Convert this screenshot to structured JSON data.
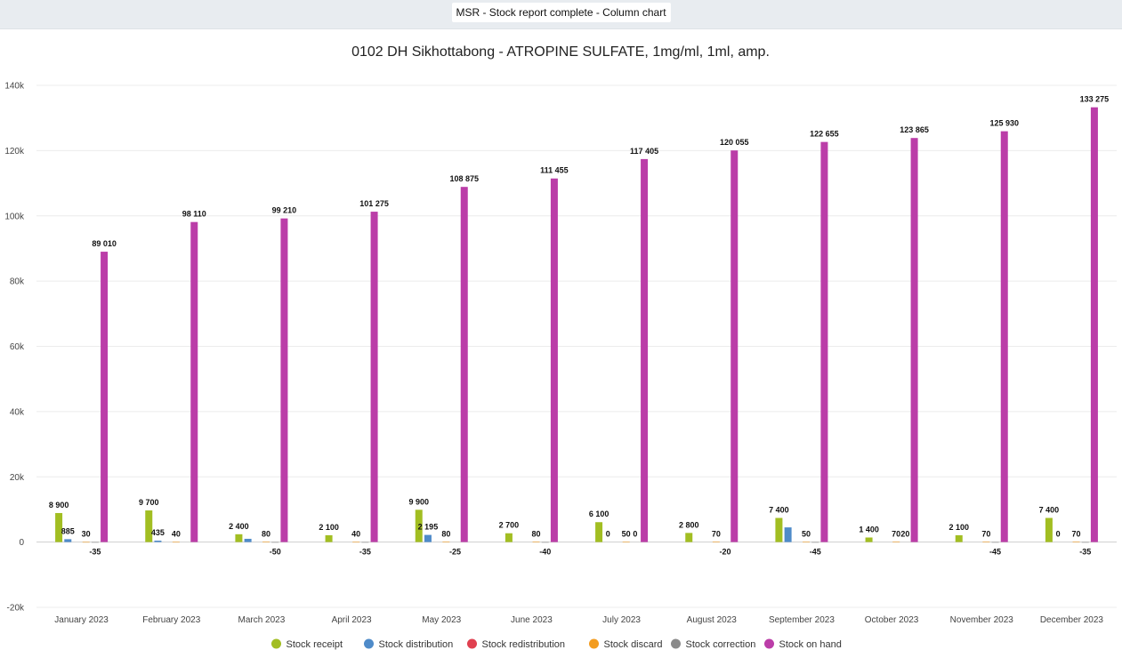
{
  "window": {
    "title": "MSR - Stock report complete - Column chart"
  },
  "chart_data": {
    "type": "bar",
    "title": "0102 DH Sikhottabong - ATROPINE SULFATE, 1mg/ml, 1ml, amp.",
    "categories": [
      "January 2023",
      "February 2023",
      "March 2023",
      "April 2023",
      "May 2023",
      "June 2023",
      "July 2023",
      "August 2023",
      "September 2023",
      "October 2023",
      "November 2023",
      "December 2023"
    ],
    "ylim": [
      -20000,
      140000
    ],
    "yticks": [
      -20000,
      0,
      20000,
      40000,
      60000,
      80000,
      100000,
      120000,
      140000
    ],
    "ytick_labels": [
      "-20k",
      "0",
      "20k",
      "40k",
      "60k",
      "80k",
      "100k",
      "120k",
      "140k"
    ],
    "grid": true,
    "legend_position": "bottom",
    "series": [
      {
        "name": "Stock receipt",
        "color": "#a2be22",
        "values": [
          8900,
          9700,
          2400,
          2100,
          9900,
          2700,
          6100,
          2800,
          7400,
          1400,
          2100,
          7400
        ],
        "labels": [
          "8 900",
          "9 700",
          "2 400",
          "2 100",
          "9 900",
          "2 700",
          "6 100",
          "2 800",
          "7 400",
          "1 400",
          "2 100",
          "7 400"
        ]
      },
      {
        "name": "Stock distribution",
        "color": "#4f8bc9",
        "values": [
          885,
          435,
          1000,
          0,
          2195,
          0,
          0,
          0,
          4500,
          0,
          0,
          0
        ],
        "labels": [
          "885",
          "435",
          "",
          "",
          "2 195",
          "",
          "0",
          "",
          "",
          "",
          "",
          "0"
        ]
      },
      {
        "name": "Stock redistribution",
        "color": "#e04050",
        "values": [
          0,
          0,
          0,
          0,
          0,
          0,
          0,
          0,
          0,
          0,
          0,
          0
        ],
        "labels": [
          "",
          "",
          "",
          "",
          "",
          "",
          "",
          "",
          "",
          "",
          "",
          ""
        ]
      },
      {
        "name": "Stock discard",
        "color": "#f39c1f",
        "values": [
          30,
          40,
          80,
          40,
          80,
          80,
          50,
          70,
          50,
          70,
          70,
          70
        ],
        "labels": [
          "30",
          "40",
          "80",
          "40",
          "80",
          "80",
          "50",
          "70",
          "50",
          "70",
          "70",
          "70"
        ]
      },
      {
        "name": "Stock correction",
        "color": "#8a8a8a",
        "values": [
          -35,
          0,
          -50,
          -35,
          -25,
          -40,
          0,
          -20,
          -45,
          20,
          -45,
          -35
        ],
        "labels": [
          "-35",
          "",
          "-50",
          "-35",
          "-25",
          "-40",
          "0",
          "-20",
          "-45",
          "20",
          "-45",
          "-35"
        ]
      },
      {
        "name": "Stock on hand",
        "color": "#bb3da8",
        "values": [
          89010,
          98110,
          99210,
          101275,
          108875,
          111455,
          117405,
          120055,
          122655,
          123865,
          125930,
          133275
        ],
        "labels": [
          "89 010",
          "98 110",
          "99 210",
          "101 275",
          "108 875",
          "111 455",
          "117 405",
          "120 055",
          "122 655",
          "123 865",
          "125 930",
          "133 275"
        ]
      }
    ]
  }
}
